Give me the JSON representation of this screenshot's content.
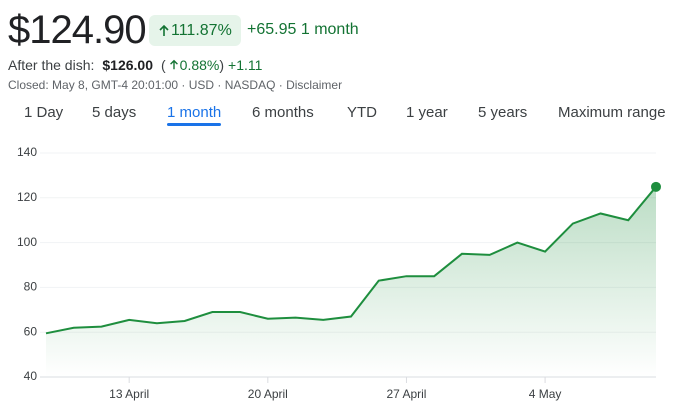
{
  "header": {
    "price": "$124.90",
    "change_percent": "111.87%",
    "change": "+65.95",
    "period": "1 month",
    "after_label": "After the dish:",
    "after_price": "$126.00",
    "after_open": "(",
    "after_percent": "0.88%",
    "after_close": ")",
    "after_change": "+1.11",
    "closed_line": "Closed: May 8, GMT-4 20:01:00 · USD · NASDAQ · Disclaimer"
  },
  "tabs": {
    "items": [
      "1 Day",
      "5 days",
      "1 month",
      "6 months",
      "YTD",
      "1 year",
      "5 years",
      "Maximum range"
    ],
    "selected": 2
  },
  "chart_data": {
    "type": "line",
    "categories": [
      null,
      null,
      null,
      "13 April",
      null,
      null,
      null,
      null,
      "20 April",
      null,
      null,
      null,
      null,
      "27 April",
      null,
      null,
      null,
      null,
      "4 May",
      null,
      null,
      null,
      null
    ],
    "series": [
      {
        "color": "#1e8e3e",
        "values": [
          59.5,
          62,
          62.5,
          65.5,
          64,
          65,
          69,
          69,
          66,
          66.5,
          65.5,
          67,
          83,
          85,
          85,
          95,
          94.5,
          100,
          96,
          108.5,
          113,
          110,
          124.9
        ]
      }
    ],
    "ylim": [
      40,
      140
    ],
    "yticks": [
      40,
      60,
      80,
      100,
      120,
      140
    ],
    "grid": true
  }
}
